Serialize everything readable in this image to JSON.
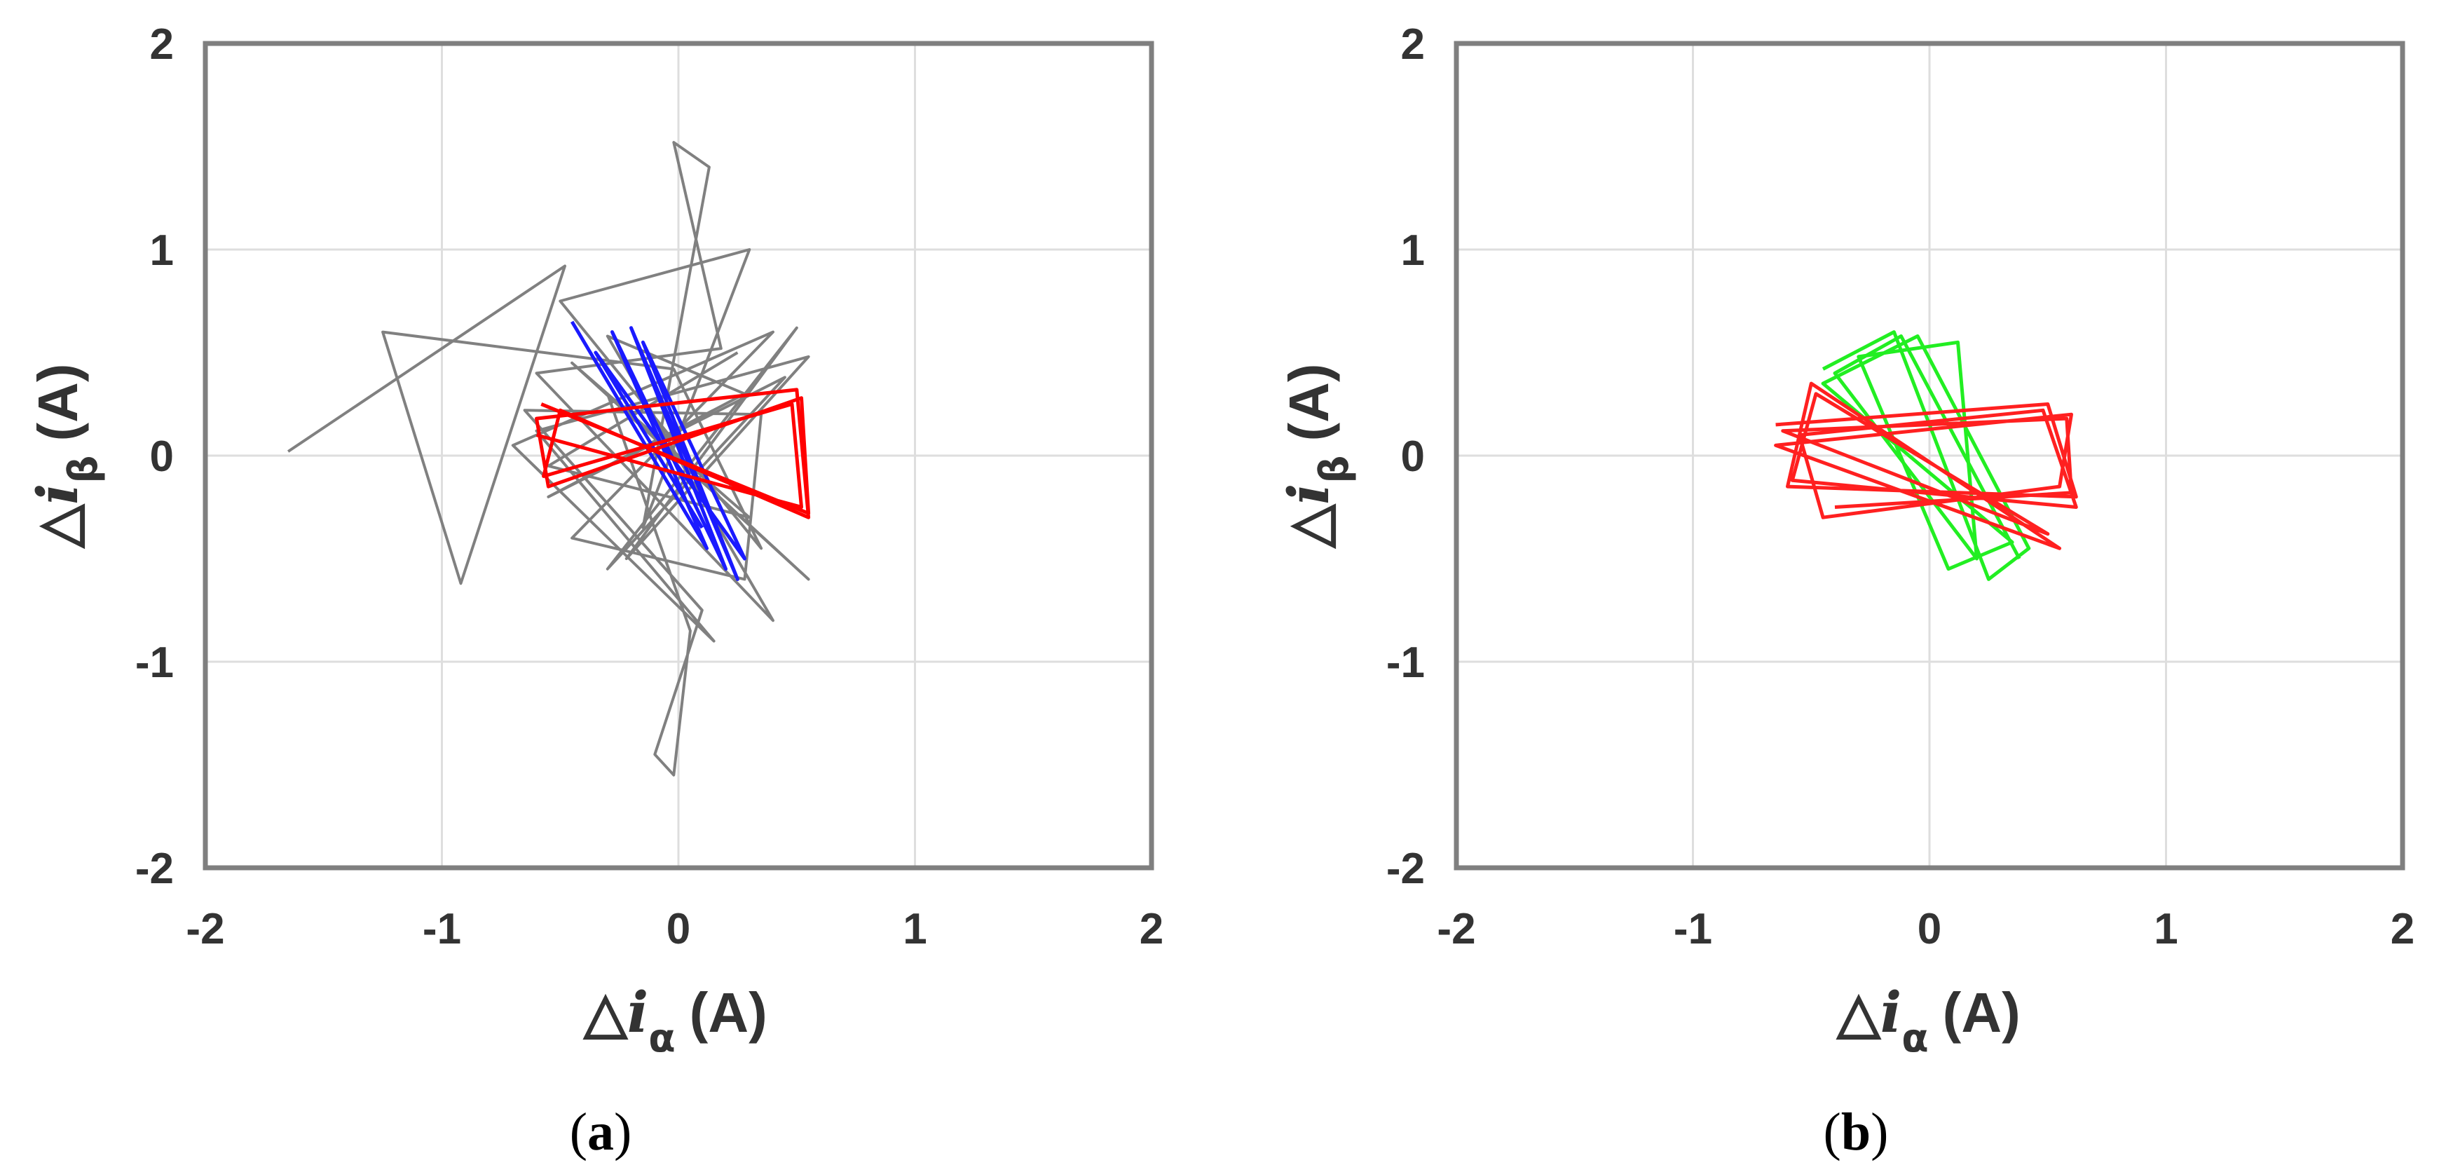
{
  "panels": {
    "a": {
      "label_open": "(",
      "label_letter": "a",
      "label_close": ")"
    },
    "b": {
      "label_open": "(",
      "label_letter": "b",
      "label_close": ")"
    }
  },
  "axis_text": {
    "delta": "△",
    "x_var": "i",
    "x_sub": "α",
    "y_var": "i",
    "y_sub": "β",
    "unit": "(A)"
  },
  "chart_data": [
    {
      "type": "line",
      "panel": "a",
      "xlim": [
        -2,
        2
      ],
      "ylim": [
        -2,
        2
      ],
      "x_ticks": [
        -2,
        -1,
        0,
        1,
        2
      ],
      "y_ticks": [
        -2,
        -1,
        0,
        1,
        2
      ],
      "x_tick_labels": [
        "-2",
        "-1",
        "0",
        "1",
        "2"
      ],
      "y_tick_labels": [
        "-2",
        "-1",
        "0",
        "1",
        "2"
      ],
      "grid": true,
      "series": [
        {
          "color": "#808080",
          "points": [
            [
              -1.65,
              0.02
            ],
            [
              -0.48,
              0.92
            ],
            [
              -0.92,
              -0.62
            ],
            [
              -1.25,
              0.6
            ],
            [
              -0.02,
              0.42
            ],
            [
              0.35,
              -0.45
            ],
            [
              -0.5,
              0.75
            ],
            [
              0.3,
              1.0
            ],
            [
              -0.15,
              -0.35
            ],
            [
              0.13,
              1.4
            ],
            [
              -0.02,
              1.52
            ],
            [
              0.18,
              0.52
            ],
            [
              -0.6,
              0.4
            ],
            [
              0.4,
              -0.8
            ],
            [
              -0.3,
              0.58
            ],
            [
              0.28,
              0.3
            ],
            [
              -0.55,
              -0.2
            ],
            [
              0.45,
              0.38
            ],
            [
              -0.3,
              -0.55
            ],
            [
              0.5,
              0.62
            ],
            [
              -0.22,
              -0.5
            ],
            [
              0.55,
              0.48
            ],
            [
              -0.6,
              0.12
            ],
            [
              0.15,
              -0.9
            ],
            [
              -0.7,
              0.05
            ],
            [
              0.4,
              0.6
            ],
            [
              -0.45,
              -0.4
            ],
            [
              0.28,
              -0.6
            ],
            [
              0.35,
              0.2
            ],
            [
              -0.65,
              0.22
            ],
            [
              0.1,
              -0.75
            ],
            [
              -0.1,
              -1.45
            ],
            [
              -0.02,
              -1.55
            ],
            [
              0.05,
              -0.85
            ],
            [
              -0.3,
              0.3
            ],
            [
              0.55,
              -0.6
            ],
            [
              -0.45,
              0.45
            ],
            [
              0.3,
              -0.3
            ],
            [
              -0.55,
              -0.05
            ],
            [
              0.25,
              0.5
            ]
          ]
        },
        {
          "color": "#1a1aff",
          "points": [
            [
              -0.45,
              0.65
            ],
            [
              0.12,
              -0.45
            ],
            [
              -0.28,
              0.6
            ],
            [
              0.2,
              -0.55
            ],
            [
              -0.2,
              0.62
            ],
            [
              0.25,
              -0.6
            ],
            [
              -0.15,
              0.55
            ],
            [
              0.28,
              -0.5
            ],
            [
              -0.35,
              0.5
            ],
            [
              0.1,
              -0.35
            ]
          ]
        },
        {
          "color": "#ff0000",
          "points": [
            [
              -0.58,
              0.25
            ],
            [
              0.55,
              -0.28
            ],
            [
              0.52,
              0.28
            ],
            [
              -0.55,
              -0.15
            ],
            [
              -0.6,
              0.18
            ],
            [
              0.5,
              0.32
            ],
            [
              0.55,
              -0.3
            ],
            [
              -0.5,
              0.22
            ],
            [
              -0.57,
              -0.1
            ],
            [
              0.48,
              0.25
            ],
            [
              0.52,
              -0.25
            ],
            [
              -0.6,
              0.1
            ]
          ]
        }
      ]
    },
    {
      "type": "line",
      "panel": "b",
      "xlim": [
        -2,
        2
      ],
      "ylim": [
        -2,
        2
      ],
      "x_ticks": [
        -2,
        -1,
        0,
        1,
        2
      ],
      "y_ticks": [
        -2,
        -1,
        0,
        1,
        2
      ],
      "x_tick_labels": [
        "-2",
        "-1",
        "0",
        "1",
        "2"
      ],
      "y_tick_labels": [
        "-2",
        "-1",
        "0",
        "1",
        "2"
      ],
      "grid": true,
      "series": [
        {
          "color": "#22ee22",
          "points": [
            [
              -0.45,
              0.42
            ],
            [
              -0.15,
              0.6
            ],
            [
              0.25,
              -0.6
            ],
            [
              0.42,
              -0.45
            ],
            [
              -0.05,
              0.58
            ],
            [
              -0.45,
              0.35
            ],
            [
              0.35,
              -0.42
            ],
            [
              0.08,
              -0.55
            ],
            [
              -0.3,
              0.48
            ],
            [
              0.12,
              0.55
            ],
            [
              0.2,
              -0.5
            ],
            [
              -0.4,
              0.4
            ],
            [
              -0.12,
              0.58
            ],
            [
              0.38,
              -0.5
            ]
          ]
        },
        {
          "color": "#ff2020",
          "points": [
            [
              -0.65,
              0.15
            ],
            [
              0.5,
              0.25
            ],
            [
              0.62,
              -0.2
            ],
            [
              -0.6,
              -0.15
            ],
            [
              -0.5,
              0.35
            ],
            [
              0.55,
              -0.45
            ],
            [
              -0.65,
              0.05
            ],
            [
              0.6,
              0.2
            ],
            [
              0.55,
              -0.15
            ],
            [
              -0.45,
              -0.3
            ],
            [
              -0.55,
              0.1
            ],
            [
              0.48,
              0.22
            ],
            [
              0.62,
              -0.25
            ],
            [
              -0.58,
              -0.12
            ],
            [
              -0.48,
              0.3
            ],
            [
              0.5,
              -0.38
            ],
            [
              -0.62,
              0.12
            ],
            [
              0.58,
              0.18
            ],
            [
              0.6,
              -0.18
            ],
            [
              -0.4,
              -0.25
            ]
          ]
        }
      ]
    }
  ]
}
